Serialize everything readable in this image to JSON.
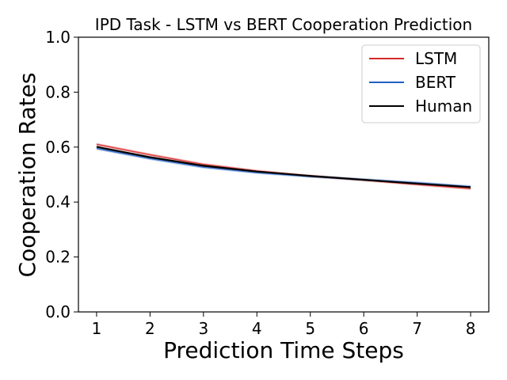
{
  "chart_data": {
    "type": "line",
    "title": "IPD Task - LSTM vs BERT Cooperation Prediction",
    "xlabel": "Prediction Time Steps",
    "ylabel": "Cooperation Rates",
    "x": [
      1,
      2,
      3,
      4,
      5,
      6,
      7,
      8
    ],
    "xlim": [
      0.66,
      8.34
    ],
    "ylim": [
      0.0,
      1.0
    ],
    "x_ticks": [
      "1",
      "2",
      "3",
      "4",
      "5",
      "6",
      "7",
      "8"
    ],
    "y_ticks": [
      "0.0",
      "0.2",
      "0.4",
      "0.6",
      "0.8",
      "1.0"
    ],
    "y_tick_values": [
      0.0,
      0.2,
      0.4,
      0.6,
      0.8,
      1.0
    ],
    "grid": false,
    "legend_position": "top-right",
    "series": [
      {
        "name": "LSTM",
        "color": "#d62728",
        "values": [
          0.61,
          0.572,
          0.537,
          0.513,
          0.495,
          0.48,
          0.464,
          0.449
        ],
        "band": [
          0.005,
          0.005,
          0.005,
          0.005,
          0.005,
          0.005,
          0.005,
          0.005
        ]
      },
      {
        "name": "BERT",
        "color": "#1f5fc4",
        "values": [
          0.595,
          0.558,
          0.527,
          0.507,
          0.493,
          0.482,
          0.47,
          0.456
        ],
        "band": [
          0.005,
          0.005,
          0.005,
          0.005,
          0.005,
          0.005,
          0.005,
          0.005
        ]
      },
      {
        "name": "Human",
        "color": "#000000",
        "values": [
          0.601,
          0.563,
          0.532,
          0.511,
          0.495,
          0.481,
          0.467,
          0.454
        ]
      }
    ]
  }
}
